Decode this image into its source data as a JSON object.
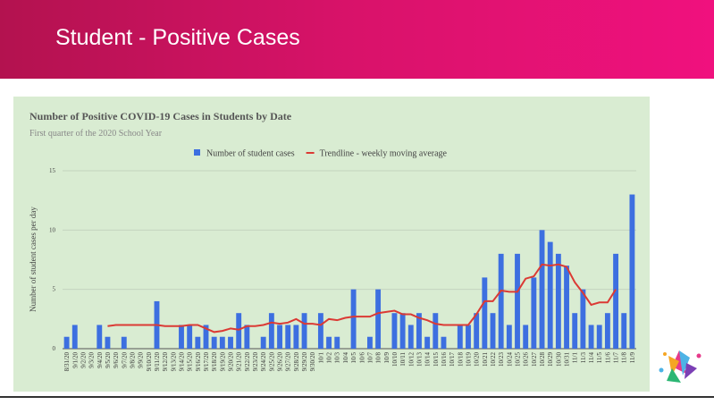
{
  "slide": {
    "title": "Student - Positive Cases"
  },
  "chart_data": {
    "type": "bar",
    "title": "Number of Positive COVID-19 Cases in Students by Date",
    "subtitle": "First quarter of the 2020 School Year",
    "y_label": "Number of student cases per day",
    "categories": [
      "8/31/20",
      "9/1/20",
      "9/2/20",
      "9/3/20",
      "9/4/20",
      "9/5/20",
      "9/6/20",
      "9/7/20",
      "9/8/20",
      "9/9/20",
      "9/10/20",
      "9/11/20",
      "9/12/20",
      "9/13/20",
      "9/14/20",
      "9/15/20",
      "9/16/20",
      "9/17/20",
      "9/18/20",
      "9/19/20",
      "9/20/20",
      "9/21/20",
      "9/22/20",
      "9/23/20",
      "9/24/20",
      "9/25/20",
      "9/26/20",
      "9/27/20",
      "9/28/20",
      "9/29/20",
      "9/30/20",
      "10/1",
      "10/2",
      "10/3",
      "10/4",
      "10/5",
      "10/6",
      "10/7",
      "10/8",
      "10/9",
      "10/10",
      "10/11",
      "10/12",
      "10/13",
      "10/14",
      "10/15",
      "10/16",
      "10/17",
      "10/18",
      "10/19",
      "10/20",
      "10/21",
      "10/22",
      "10/23",
      "10/24",
      "10/25",
      "10/26",
      "10/27",
      "10/28",
      "10/29",
      "10/30",
      "10/31",
      "11/1",
      "11/3",
      "11/4",
      "11/5",
      "11/6",
      "11/7",
      "11/8",
      "11/9"
    ],
    "series": [
      {
        "name": "Number of student cases",
        "type": "bar",
        "color": "#3d6fe0",
        "values": [
          1,
          2,
          0,
          0,
          2,
          1,
          0,
          1,
          0,
          0,
          0,
          4,
          0,
          0,
          2,
          2,
          1,
          2,
          1,
          1,
          1,
          3,
          2,
          0,
          1,
          3,
          2,
          2,
          2,
          3,
          0,
          3,
          1,
          1,
          0,
          5,
          0,
          1,
          5,
          0,
          3,
          3,
          2,
          3,
          1,
          3,
          1,
          0,
          2,
          2,
          3,
          6,
          3,
          8,
          2,
          8,
          2,
          6,
          10,
          9,
          8,
          7,
          3,
          5,
          2,
          2,
          3,
          8,
          3,
          13
        ]
      },
      {
        "name": "Trendline - weekly moving average",
        "type": "line",
        "color": "#db3a34",
        "values": [
          null,
          null,
          null,
          null,
          null,
          1.9,
          2.0,
          2.0,
          2.0,
          2.0,
          2.0,
          2.0,
          1.9,
          1.9,
          1.9,
          2.0,
          2.0,
          1.7,
          1.4,
          1.5,
          1.7,
          1.6,
          1.9,
          1.9,
          2.0,
          2.2,
          2.1,
          2.2,
          2.5,
          2.1,
          2.1,
          2.0,
          2.5,
          2.4,
          2.6,
          2.7,
          2.7,
          2.7,
          3.0,
          3.1,
          3.2,
          2.9,
          2.9,
          2.6,
          2.4,
          2.1,
          2.0,
          2.0,
          2.0,
          2.0,
          2.9,
          4.0,
          4.0,
          4.9,
          4.8,
          4.8,
          5.9,
          6.1,
          7.1,
          7.0,
          7.1,
          6.9,
          5.6,
          4.7,
          3.7,
          3.9,
          3.9,
          5.0,
          null,
          null
        ]
      }
    ],
    "ylim": [
      0,
      15
    ],
    "yticks": [
      0,
      5,
      10,
      15
    ],
    "grid": true,
    "legend": "top"
  }
}
